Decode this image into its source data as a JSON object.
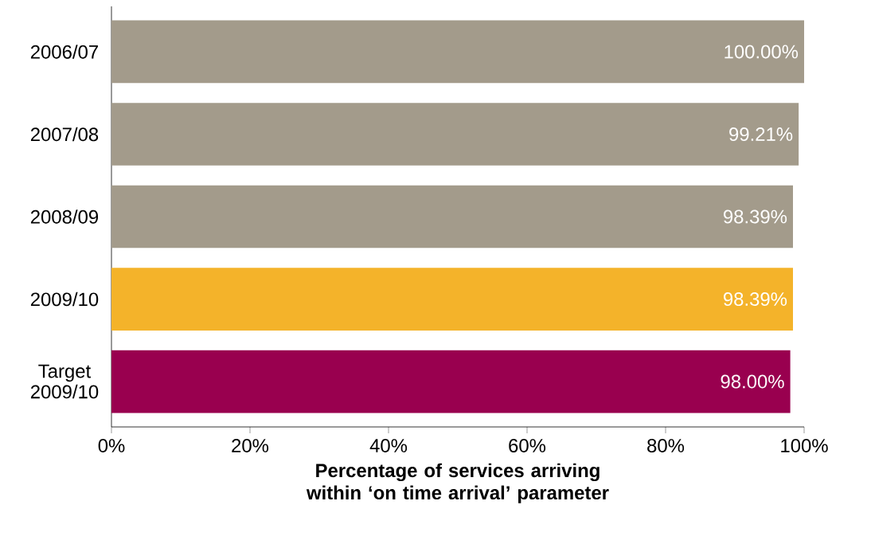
{
  "chart_data": {
    "type": "bar",
    "orientation": "horizontal",
    "categories": [
      "2006/07",
      "2007/08",
      "2008/09",
      "2009/10",
      "Target 2009/10"
    ],
    "values": [
      100,
      99.21,
      98.39,
      98.39,
      98.0
    ],
    "colors": [
      "#a39b8b",
      "#a39b8b",
      "#a39b8b",
      "#f4b32a",
      "#99004f"
    ],
    "value_labels": [
      "100.00%",
      "99.21%",
      "98.39%",
      "98.39%",
      "98.00%"
    ],
    "xlabel": "Percentage of services arriving within ‘on time arrival’ parameter",
    "xlim": [
      0,
      100
    ],
    "xticks": [
      {
        "value": 0,
        "label": "0%"
      },
      {
        "value": 20,
        "label": "20%"
      },
      {
        "value": 40,
        "label": "40%"
      },
      {
        "value": 60,
        "label": "60%"
      },
      {
        "value": 80,
        "label": "80%"
      },
      {
        "value": 100,
        "label": "100%"
      }
    ],
    "grid": false
  }
}
